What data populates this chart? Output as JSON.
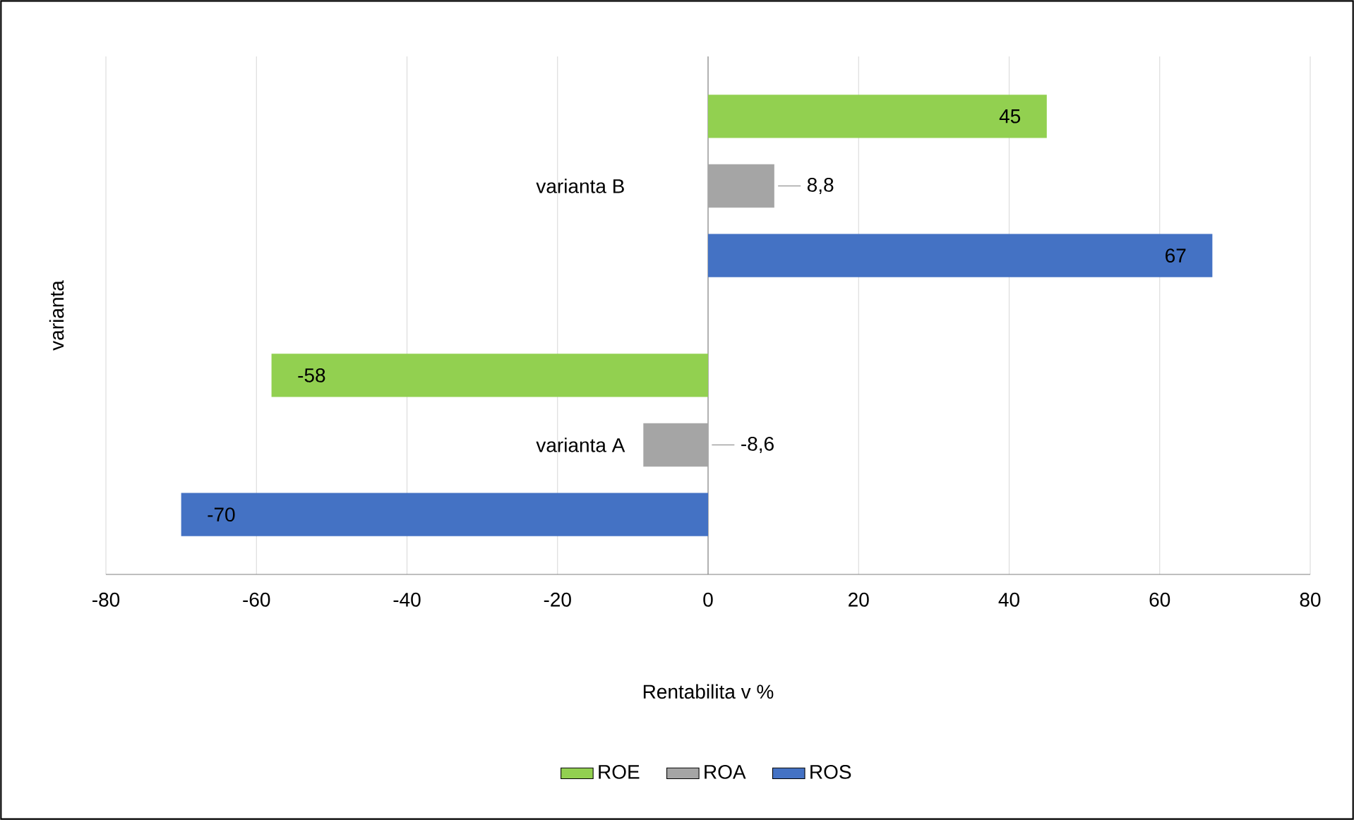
{
  "chart_data": {
    "type": "bar",
    "orientation": "horizontal",
    "categories": [
      "varianta B",
      "varianta A"
    ],
    "series": [
      {
        "name": "ROE",
        "color": "#92d050",
        "values": [
          45,
          -58
        ],
        "value_labels": [
          "45",
          "-58"
        ]
      },
      {
        "name": "ROA",
        "color": "#a5a5a5",
        "values": [
          8.8,
          -8.6
        ],
        "value_labels": [
          "8,8",
          "-8,6"
        ]
      },
      {
        "name": "ROS",
        "color": "#4472c4",
        "values": [
          67,
          -70
        ],
        "value_labels": [
          "67",
          "-70"
        ]
      }
    ],
    "xlabel": "Rentabilita v %",
    "ylabel": "varianta",
    "xlim": [
      -80,
      80
    ],
    "xticks": [
      -80,
      -60,
      -40,
      -20,
      0,
      20,
      40,
      60,
      80
    ],
    "grid": "x",
    "legend": "bottom"
  }
}
